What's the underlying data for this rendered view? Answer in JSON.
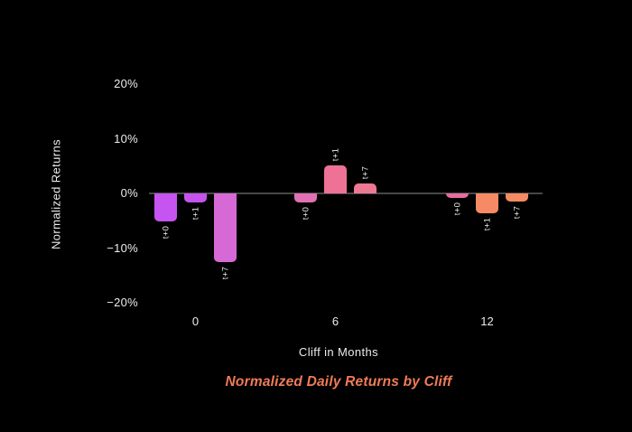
{
  "chart_data": {
    "type": "bar",
    "title": "Normalized Daily Returns by Cliff",
    "xlabel": "Cliff in Months",
    "ylabel": "Normalized Returns",
    "categories": [
      "0",
      "6",
      "12"
    ],
    "series": [
      {
        "name": "t+0",
        "values": [
          -5.1,
          -1.6,
          -0.8
        ],
        "colors": [
          "#c654f0",
          "#e171b3",
          "#e76da0"
        ]
      },
      {
        "name": "t+1",
        "values": [
          -1.6,
          5.1,
          -3.6
        ],
        "colors": [
          "#c554ee",
          "#ee7296",
          "#f68a64"
        ]
      },
      {
        "name": "t+7",
        "values": [
          -12.6,
          1.8,
          -1.5
        ],
        "colors": [
          "#d669d6",
          "#ee7892",
          "#f58b63"
        ]
      }
    ],
    "yticks": [
      "20%",
      "10%",
      "0%",
      "−10%",
      "−20%"
    ],
    "ytick_values": [
      20,
      10,
      0,
      -10,
      -20
    ],
    "ylim": [
      -25,
      25
    ],
    "bar_end_labels": [
      "t+0",
      "t+1",
      "t+7"
    ],
    "legend": "none",
    "grid": false,
    "background": "#000000",
    "text_color": "#ececec",
    "title_color": "#f07b58",
    "zero_line_color": "#474747"
  }
}
